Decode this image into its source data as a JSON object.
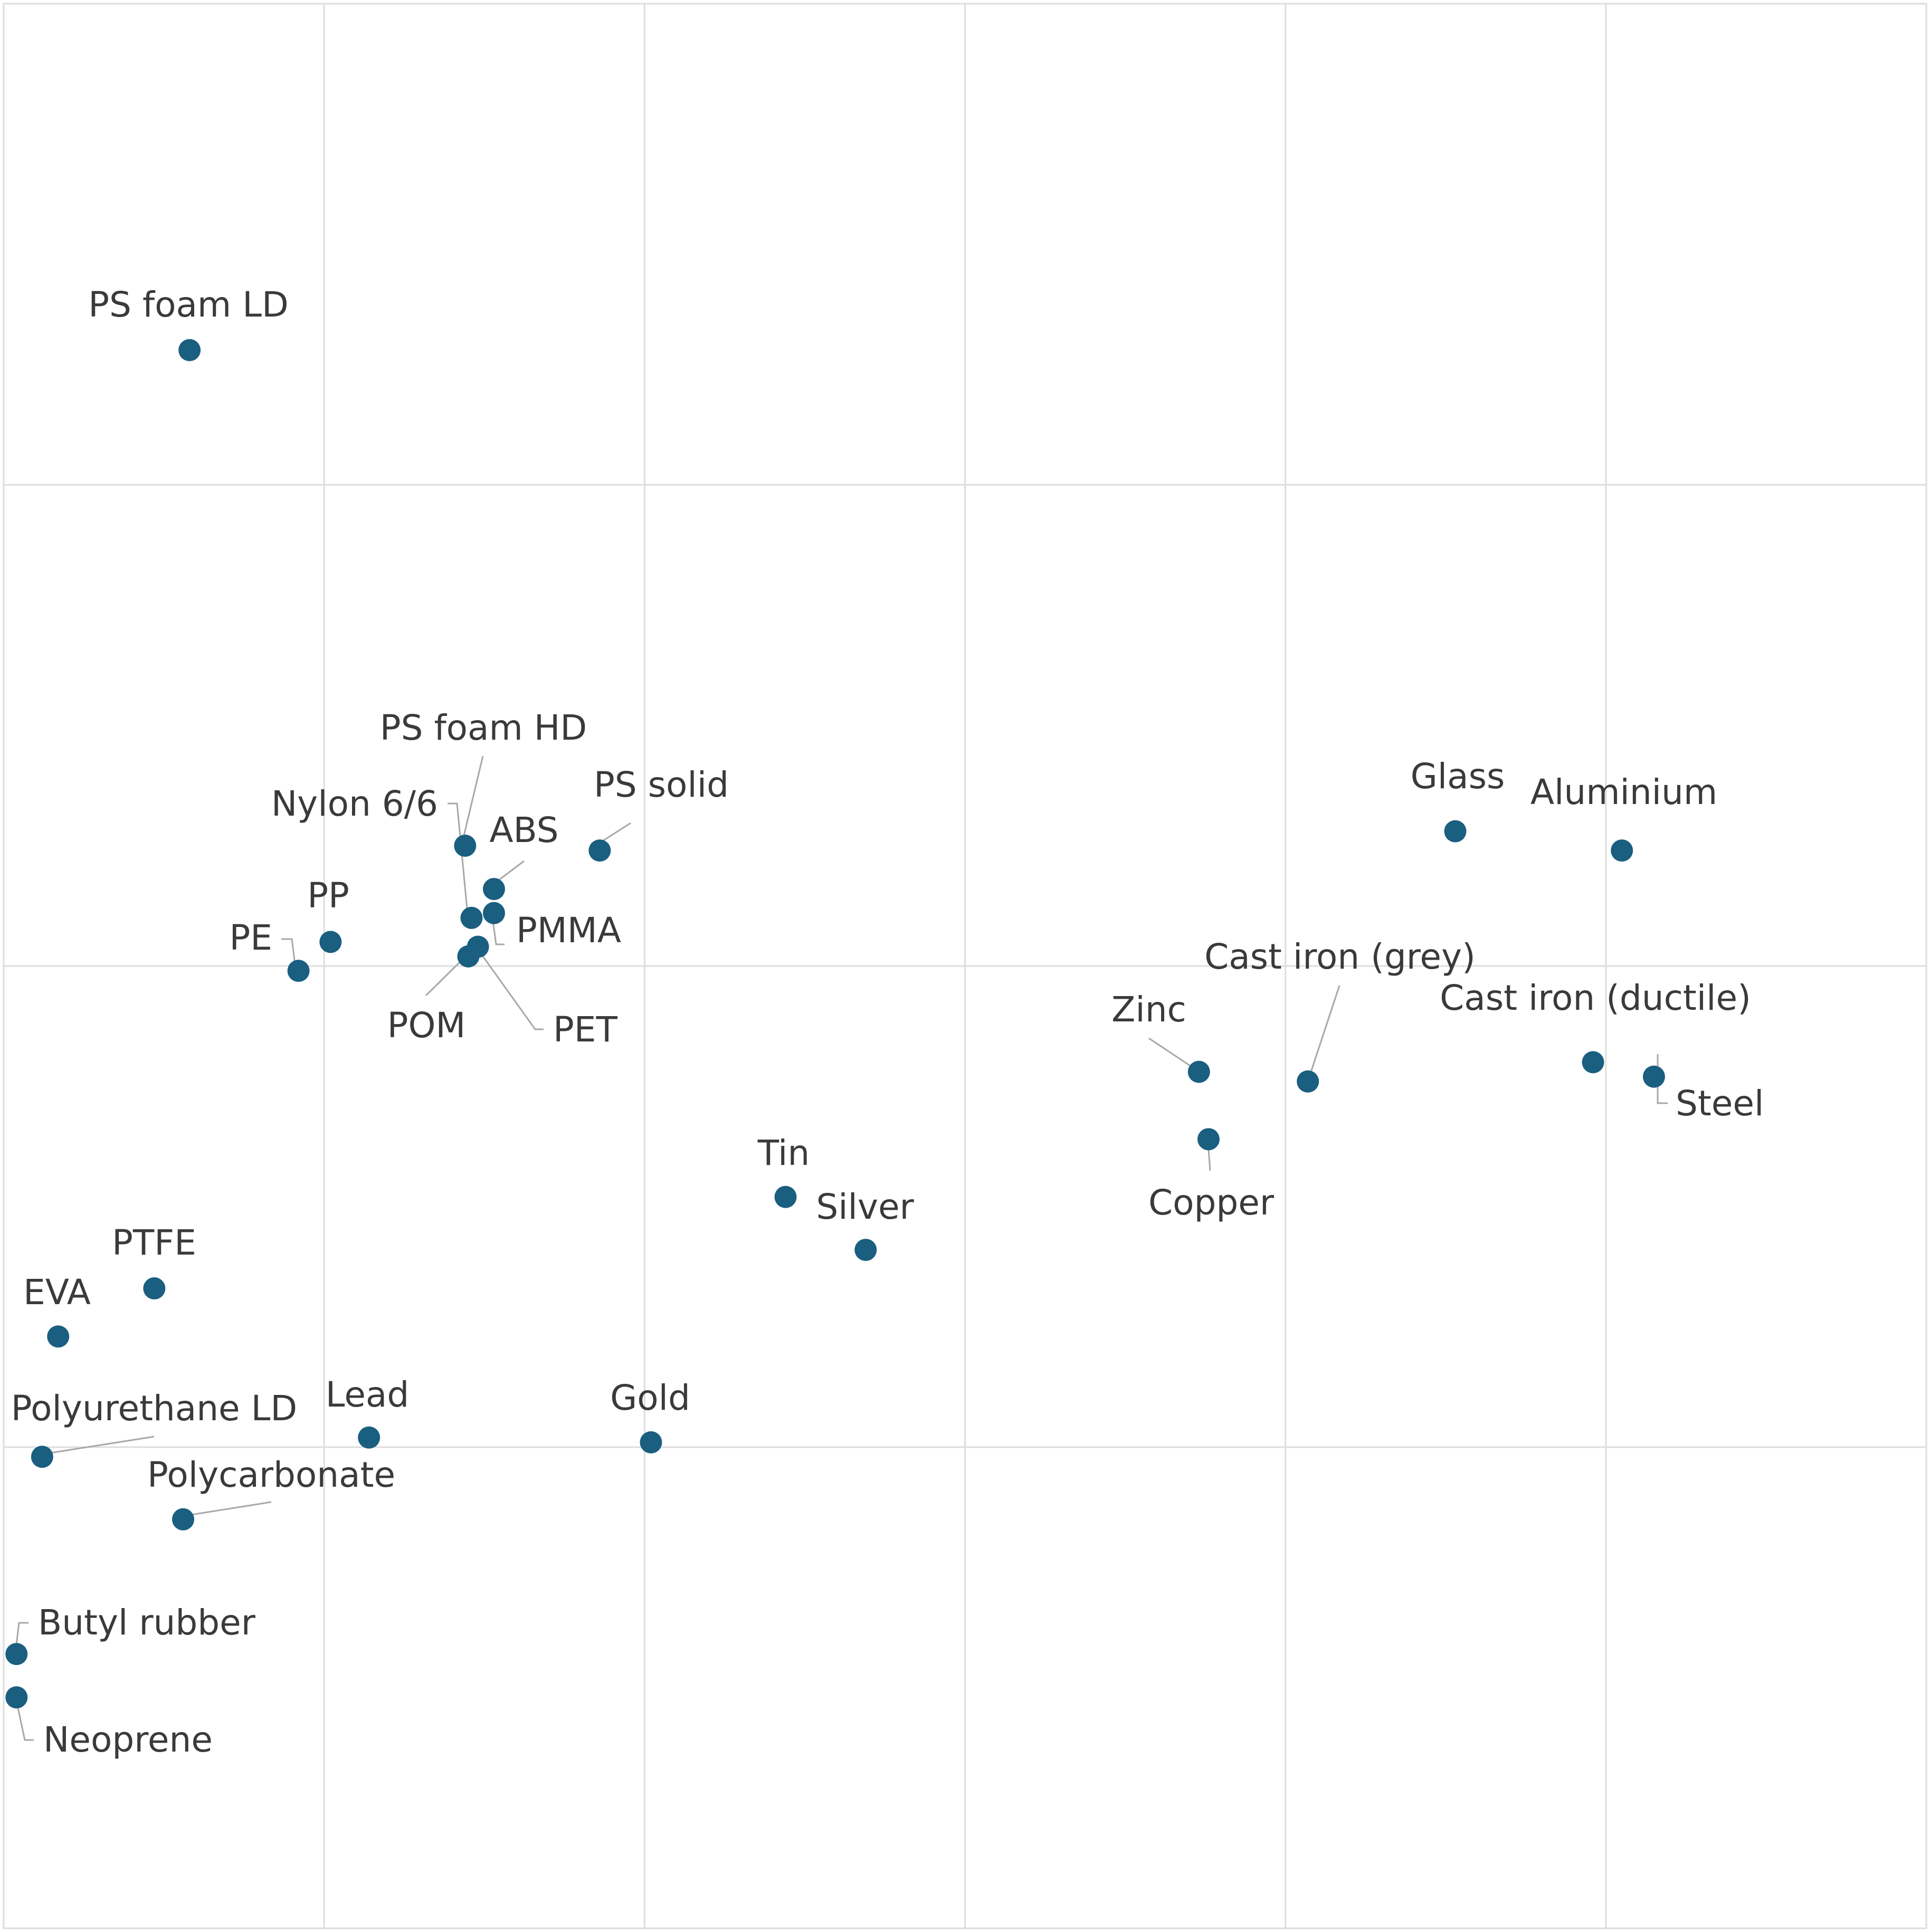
{
  "colors": {
    "point": "#1a5e80",
    "grid": "#dddddd",
    "leader": "#a8a8a8",
    "label": "#3a3a3a"
  },
  "chart_data": {
    "type": "scatter",
    "grid": true,
    "xlim": [
      0,
      6
    ],
    "ylim": [
      0,
      4
    ],
    "x_gridlines": [
      1,
      2,
      3,
      4,
      5
    ],
    "y_gridlines": [
      1,
      2,
      3
    ],
    "points": [
      {
        "label": "PS foam LD",
        "x": 0.58,
        "y": 3.28
      },
      {
        "label": "PS foam HD",
        "x": 1.44,
        "y": 2.25
      },
      {
        "label": "Nylon 6/6",
        "x": 1.46,
        "y": 2.1
      },
      {
        "label": "ABS",
        "x": 1.53,
        "y": 2.16
      },
      {
        "label": "PMMA",
        "x": 1.53,
        "y": 2.11
      },
      {
        "label": "PS solid",
        "x": 1.86,
        "y": 2.24
      },
      {
        "label": "PP",
        "x": 1.02,
        "y": 2.05
      },
      {
        "label": "PE",
        "x": 0.92,
        "y": 1.99
      },
      {
        "label": "POM",
        "x": 1.45,
        "y": 2.02
      },
      {
        "label": "PET",
        "x": 1.48,
        "y": 2.04
      },
      {
        "label": "Glass",
        "x": 4.53,
        "y": 2.28
      },
      {
        "label": "Aluminium",
        "x": 5.05,
        "y": 2.24
      },
      {
        "label": "Cast iron (grey)",
        "x": 4.07,
        "y": 1.76
      },
      {
        "label": "Cast iron (ductile)",
        "x": 4.96,
        "y": 1.8
      },
      {
        "label": "Steel",
        "x": 5.15,
        "y": 1.77
      },
      {
        "label": "Zinc",
        "x": 3.73,
        "y": 1.78
      },
      {
        "label": "Copper",
        "x": 3.76,
        "y": 1.64
      },
      {
        "label": "Tin",
        "x": 2.44,
        "y": 1.52
      },
      {
        "label": "Silver",
        "x": 2.69,
        "y": 1.41
      },
      {
        "label": "PTFE",
        "x": 0.47,
        "y": 1.33
      },
      {
        "label": "EVA",
        "x": 0.17,
        "y": 1.23
      },
      {
        "label": "Lead",
        "x": 1.14,
        "y": 1.02
      },
      {
        "label": "Gold",
        "x": 2.02,
        "y": 1.01
      },
      {
        "label": "Polyurethane LD",
        "x": 0.12,
        "y": 0.98
      },
      {
        "label": "Polycarbonate",
        "x": 0.56,
        "y": 0.85
      },
      {
        "label": "Butyl rubber",
        "x": 0.04,
        "y": 0.57
      },
      {
        "label": "Neoprene",
        "x": 0.04,
        "y": 0.48
      }
    ]
  }
}
